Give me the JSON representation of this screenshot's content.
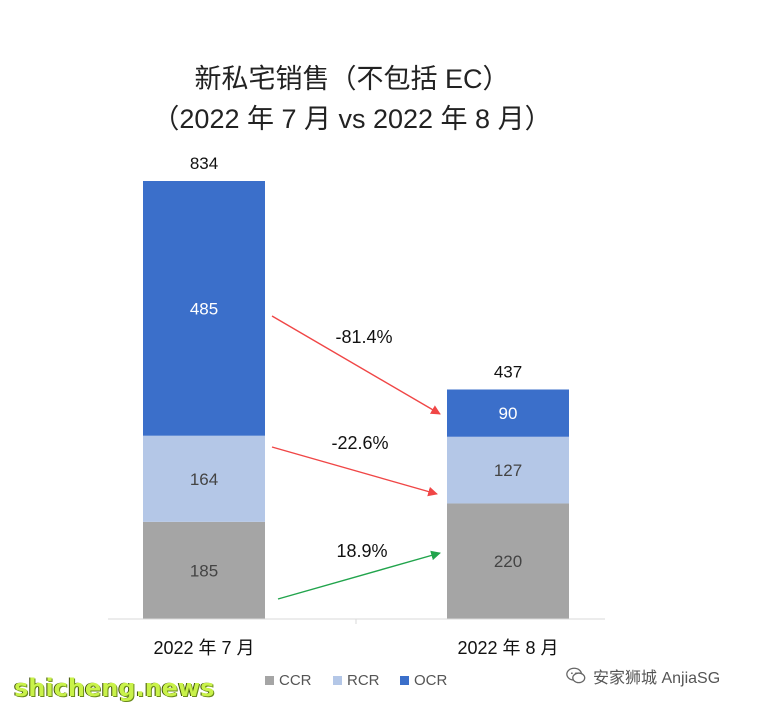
{
  "chart_data": {
    "type": "bar",
    "stacked": true,
    "title": "新私宅销售（不包括 EC）",
    "subtitle": "（2022 年 7 月 vs 2022 年 8 月）",
    "categories": [
      "2022 年 7 月",
      "2022 年 8 月"
    ],
    "totals": [
      "834",
      "437"
    ],
    "series": [
      {
        "name": "CCR",
        "values": [
          185,
          220
        ],
        "labels": [
          "185",
          "220"
        ],
        "color": "#a5a5a5"
      },
      {
        "name": "RCR",
        "values": [
          164,
          127
        ],
        "labels": [
          "164",
          "127"
        ],
        "color": "#b4c7e7"
      },
      {
        "name": "OCR",
        "values": [
          485,
          90
        ],
        "labels": [
          "485",
          "90"
        ],
        "color": "#3b6fca"
      }
    ],
    "changes": [
      {
        "series": "OCR",
        "label": "-81.4%",
        "color": "#f04646"
      },
      {
        "series": "RCR",
        "label": "-22.6%",
        "color": "#f04646"
      },
      {
        "series": "CCR",
        "label": "18.9%",
        "color": "#21a44c"
      }
    ],
    "legend": {
      "position": "bottom"
    },
    "grid": false
  },
  "watermarks": {
    "left": "shicheng.news",
    "right": "安家狮城 AnjiaSG",
    "right_icon": "wechat-icon"
  }
}
